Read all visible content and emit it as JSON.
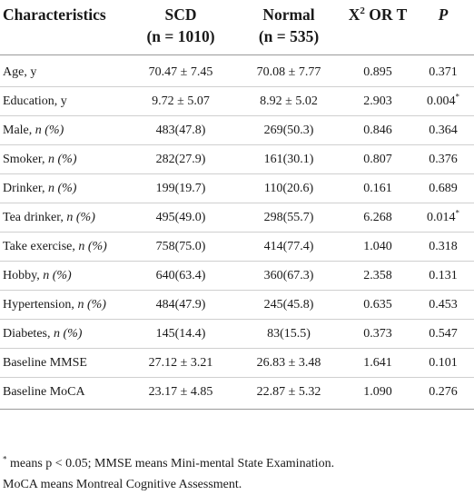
{
  "table": {
    "headers": {
      "characteristics": "Characteristics",
      "scd": "SCD",
      "scd_n": "(n = 1010)",
      "normal": "Normal",
      "normal_n": "(n = 535)",
      "stat_base": "X",
      "stat_sup": "2",
      "stat_rest": " OR T",
      "p": "P"
    },
    "rows": [
      {
        "label": "Age, y",
        "label_unit": "",
        "scd": "70.47 ± 7.45",
        "normal": "70.08 ± 7.77",
        "stat": "0.895",
        "p": "0.371",
        "mark": ""
      },
      {
        "label": "Education, y",
        "label_unit": "",
        "scd": "9.72 ± 5.07",
        "normal": "8.92 ± 5.02",
        "stat": "2.903",
        "p": "0.004",
        "mark": "*"
      },
      {
        "label": "Male, ",
        "label_unit": "n (%)",
        "scd": "483(47.8)",
        "normal": "269(50.3)",
        "stat": "0.846",
        "p": "0.364",
        "mark": ""
      },
      {
        "label": "Smoker, ",
        "label_unit": "n (%)",
        "scd": "282(27.9)",
        "normal": "161(30.1)",
        "stat": "0.807",
        "p": "0.376",
        "mark": ""
      },
      {
        "label": "Drinker, ",
        "label_unit": "n (%)",
        "scd": "199(19.7)",
        "normal": "110(20.6)",
        "stat": "0.161",
        "p": "0.689",
        "mark": ""
      },
      {
        "label": "Tea drinker, ",
        "label_unit": "n (%)",
        "scd": "495(49.0)",
        "normal": "298(55.7)",
        "stat": "6.268",
        "p": "0.014",
        "mark": "*"
      },
      {
        "label": "Take exercise, ",
        "label_unit": "n (%)",
        "scd": "758(75.0)",
        "normal": "414(77.4)",
        "stat": "1.040",
        "p": "0.318",
        "mark": ""
      },
      {
        "label": "Hobby, ",
        "label_unit": "n (%)",
        "scd": "640(63.4)",
        "normal": "360(67.3)",
        "stat": "2.358",
        "p": "0.131",
        "mark": ""
      },
      {
        "label": "Hypertension, ",
        "label_unit": "n (%)",
        "scd": "484(47.9)",
        "normal": "245(45.8)",
        "stat": "0.635",
        "p": "0.453",
        "mark": ""
      },
      {
        "label": "Diabetes, ",
        "label_unit": "n (%)",
        "scd": "145(14.4)",
        "normal": "83(15.5)",
        "stat": "0.373",
        "p": "0.547",
        "mark": ""
      },
      {
        "label": "Baseline MMSE",
        "label_unit": "",
        "scd": "27.12 ± 3.21",
        "normal": "26.83 ± 3.48",
        "stat": "1.641",
        "p": "0.101",
        "mark": ""
      },
      {
        "label": "Baseline MoCA",
        "label_unit": "",
        "scd": "23.17 ± 4.85",
        "normal": "22.87 ± 5.32",
        "stat": "1.090",
        "p": "0.276",
        "mark": ""
      }
    ]
  },
  "footnote": {
    "star": "*",
    "line1": " means p < 0.05; MMSE means Mini-mental State Examination.",
    "line2": "MoCA means Montreal Cognitive Assessment."
  }
}
